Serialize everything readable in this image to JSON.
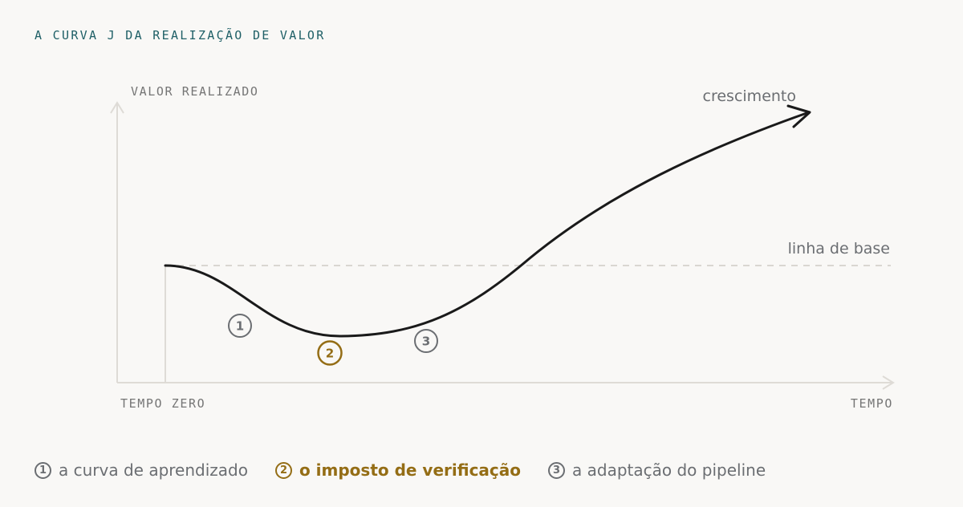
{
  "title": "A CURVA J DA REALIZAÇÃO DE VALOR",
  "axes": {
    "y_label": "VALOR REALIZADO",
    "x_start_label": "TEMPO ZERO",
    "x_end_label": "TEMPO"
  },
  "curve_labels": {
    "growth": "crescimento",
    "baseline": "linha de base"
  },
  "markers": [
    {
      "number": "1"
    },
    {
      "number": "2",
      "highlighted": true
    },
    {
      "number": "3"
    }
  ],
  "legend": [
    {
      "number": "1",
      "text": "a curva de aprendizado"
    },
    {
      "number": "2",
      "text": "o imposto de verificação",
      "highlighted": true
    },
    {
      "number": "3",
      "text": "a adaptação do pipeline"
    }
  ],
  "colors": {
    "background": "#f9f8f6",
    "title": "#1e5f66",
    "curve": "#1a1a1a",
    "axis": "#dedbd6",
    "muted": "#6b6e72",
    "highlight": "#946d15"
  }
}
